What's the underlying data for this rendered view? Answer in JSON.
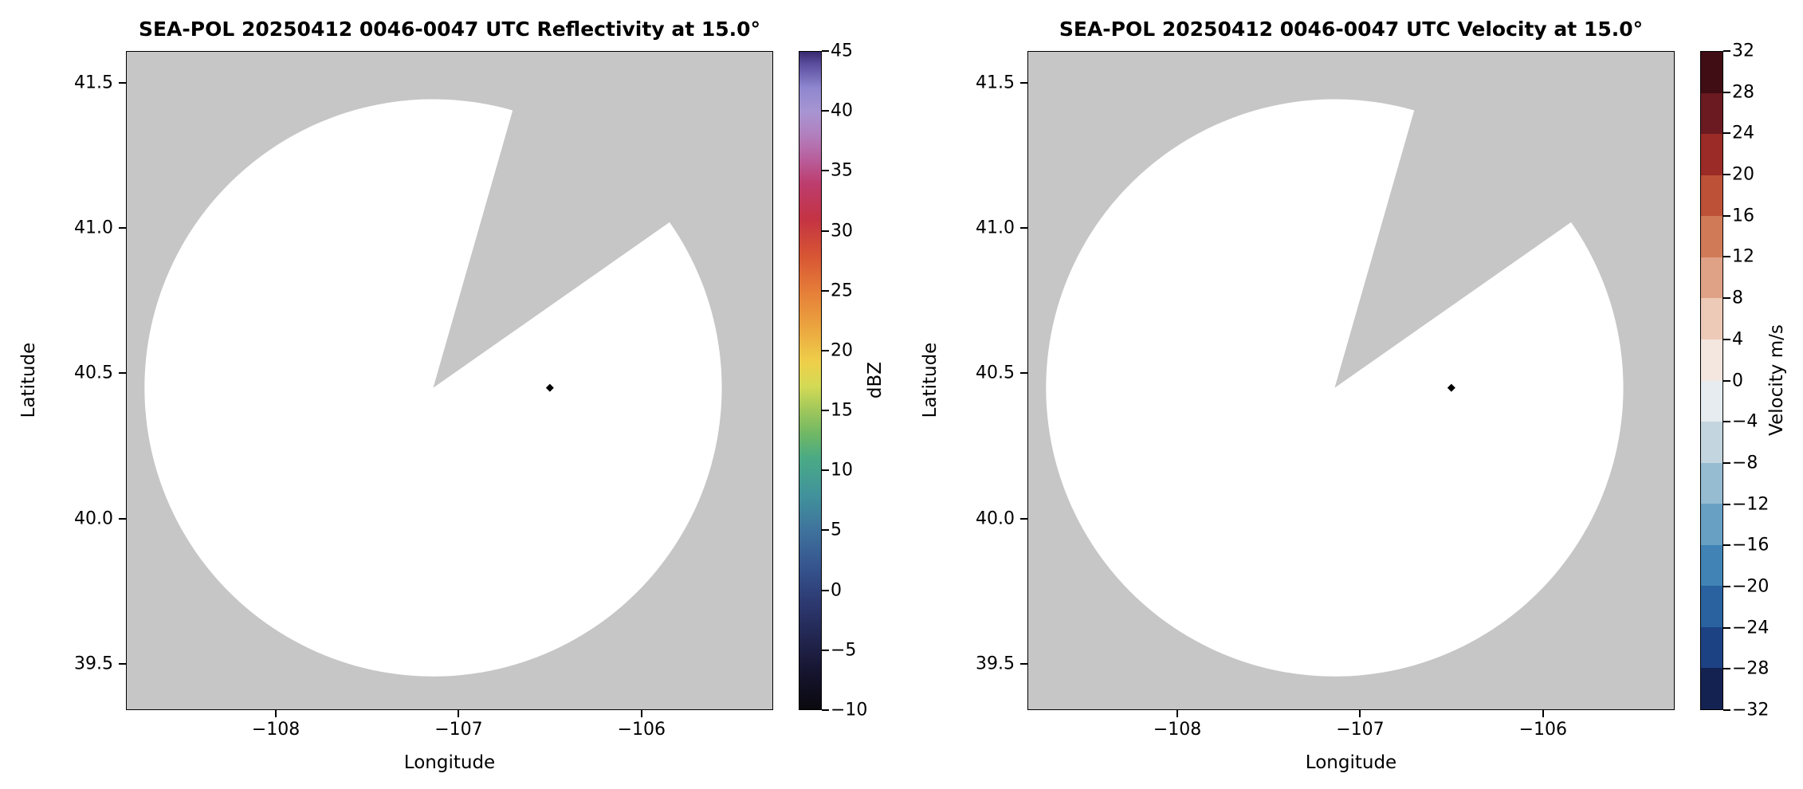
{
  "figure": {
    "background": "#ffffff"
  },
  "chart_data": [
    {
      "type": "radar-ppi",
      "title": "SEA-POL 20250412 0046-0047 UTC Reflectivity at 15.0°",
      "xlabel": "Longitude",
      "ylabel": "Latitude",
      "xlim": [
        -108.82,
        -105.28
      ],
      "ylim": [
        39.34,
        41.61
      ],
      "xticks": {
        "values": [
          -108,
          -107,
          -106
        ],
        "labels": [
          "−108",
          "−107",
          "−106"
        ]
      },
      "yticks": {
        "values": [
          41.5,
          41.0,
          40.5,
          40.0,
          39.5
        ],
        "labels": [
          "41.5",
          "41.0",
          "40.5",
          "40.0",
          "39.5"
        ]
      },
      "grid": false,
      "nodata_color": "#c6c6c6",
      "scan_fill": "#ffffff",
      "scan": {
        "center_lon": -107.14,
        "center_lat": 40.45,
        "radius_frac": 0.447,
        "blocked_sector_az": [
          16,
          55
        ]
      },
      "marker": {
        "lon": -106.5,
        "lat": 40.45,
        "shape": "diamond",
        "color": "#000000"
      },
      "colorbar": {
        "label": "dBZ",
        "style": "continuous",
        "min": -10,
        "max": 45,
        "tick_values": [
          45,
          40,
          35,
          30,
          25,
          20,
          15,
          10,
          5,
          0,
          -5,
          -10
        ],
        "tick_labels": [
          "45",
          "40",
          "35",
          "30",
          "25",
          "20",
          "15",
          "10",
          "5",
          "0",
          "−5",
          "−10"
        ],
        "gradient_stops": [
          {
            "value": -10,
            "color": "#0a090e"
          },
          {
            "value": -7,
            "color": "#16142e"
          },
          {
            "value": -4,
            "color": "#222650"
          },
          {
            "value": -1,
            "color": "#2d3a72"
          },
          {
            "value": 2,
            "color": "#36558f"
          },
          {
            "value": 5,
            "color": "#3f739c"
          },
          {
            "value": 8,
            "color": "#41939b"
          },
          {
            "value": 11,
            "color": "#4aaa85"
          },
          {
            "value": 13,
            "color": "#6fb765"
          },
          {
            "value": 15,
            "color": "#a0c75b"
          },
          {
            "value": 17,
            "color": "#d3da55"
          },
          {
            "value": 19,
            "color": "#eed04a"
          },
          {
            "value": 22,
            "color": "#eba43f"
          },
          {
            "value": 25,
            "color": "#e57d38"
          },
          {
            "value": 28,
            "color": "#d75434"
          },
          {
            "value": 31,
            "color": "#c43343"
          },
          {
            "value": 34,
            "color": "#bd3d6e"
          },
          {
            "value": 36,
            "color": "#b85e9b"
          },
          {
            "value": 38,
            "color": "#b27fbd"
          },
          {
            "value": 40,
            "color": "#a795d2"
          },
          {
            "value": 42,
            "color": "#8f87cf"
          },
          {
            "value": 44,
            "color": "#5a4d9d"
          },
          {
            "value": 45,
            "color": "#38296f"
          }
        ]
      }
    },
    {
      "type": "radar-ppi",
      "title": "SEA-POL 20250412 0046-0047 UTC Velocity at 15.0°",
      "xlabel": "Longitude",
      "ylabel": "Latitude",
      "xlim": [
        -108.82,
        -105.28
      ],
      "ylim": [
        39.34,
        41.61
      ],
      "xticks": {
        "values": [
          -108,
          -107,
          -106
        ],
        "labels": [
          "−108",
          "−107",
          "−106"
        ]
      },
      "yticks": {
        "values": [
          41.5,
          41.0,
          40.5,
          40.0,
          39.5
        ],
        "labels": [
          "41.5",
          "41.0",
          "40.5",
          "40.0",
          "39.5"
        ]
      },
      "grid": false,
      "nodata_color": "#c6c6c6",
      "scan_fill": "#ffffff",
      "scan": {
        "center_lon": -107.14,
        "center_lat": 40.45,
        "radius_frac": 0.447,
        "blocked_sector_az": [
          16,
          55
        ]
      },
      "marker": {
        "lon": -106.5,
        "lat": 40.45,
        "shape": "diamond",
        "color": "#000000"
      },
      "colorbar": {
        "label": "Velocity m/s",
        "style": "discrete",
        "min": -32,
        "max": 32,
        "tick_values": [
          32,
          28,
          24,
          20,
          16,
          12,
          8,
          4,
          0,
          -4,
          -8,
          -12,
          -16,
          -20,
          -24,
          -28,
          -32
        ],
        "tick_labels": [
          "32",
          "28",
          "24",
          "20",
          "16",
          "12",
          "8",
          "4",
          "0",
          "−4",
          "−8",
          "−12",
          "−16",
          "−20",
          "−24",
          "−28",
          "−32"
        ],
        "segment_colors_top_to_bottom": [
          "#3f0d13",
          "#6b1a21",
          "#9a2b26",
          "#bd5138",
          "#d17a58",
          "#e0a287",
          "#edcab8",
          "#f4e7e0",
          "#e6ecef",
          "#c3d5de",
          "#96bcd1",
          "#68a0c4",
          "#4083b4",
          "#29629f",
          "#1d4284",
          "#142251"
        ]
      }
    }
  ]
}
